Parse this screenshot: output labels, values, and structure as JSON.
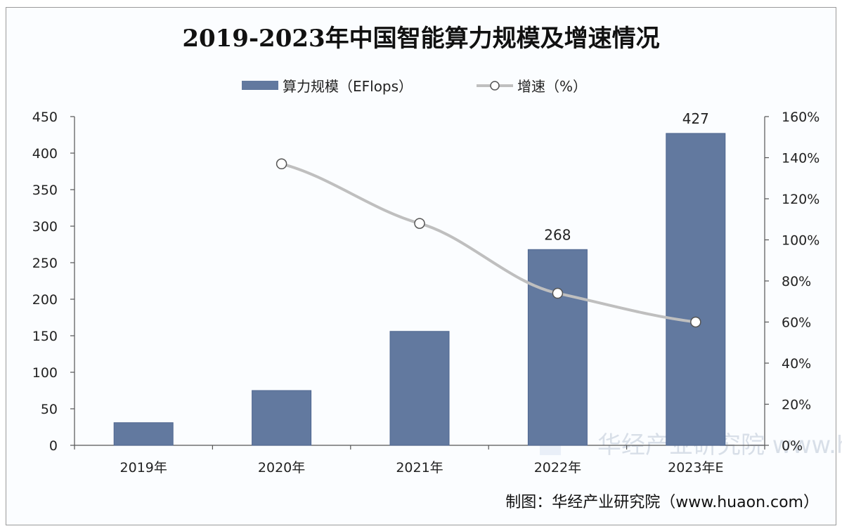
{
  "chart_data": {
    "type": "bar+line",
    "title": "2019-2023年中国智能算力规模及增速情况",
    "categories": [
      "2019年",
      "2020年",
      "2021年",
      "2022年",
      "2023年E"
    ],
    "series": [
      {
        "name": "算力规模（EFlops）",
        "type": "bar",
        "axis": "left",
        "values": [
          31,
          75,
          156,
          268,
          427
        ],
        "data_labels": [
          "",
          "",
          "",
          "268",
          "427"
        ]
      },
      {
        "name": "增速（%）",
        "type": "line",
        "axis": "right",
        "values": [
          null,
          137,
          108,
          74,
          60
        ]
      }
    ],
    "ylim_left": [
      0,
      450
    ],
    "yticks_left": [
      "0",
      "50",
      "100",
      "150",
      "200",
      "250",
      "300",
      "350",
      "400",
      "450"
    ],
    "ylim_right": [
      0,
      160
    ],
    "yticks_right": [
      "0%",
      "20%",
      "40%",
      "60%",
      "80%",
      "100%",
      "120%",
      "140%",
      "160%"
    ],
    "grid": false,
    "legend": "top-center",
    "colors": {
      "bar": "#62799f",
      "line": "#bfbfbf"
    }
  },
  "source": "制图：华经产业研究院（www.huaon.com）",
  "watermark": "华经产业研究院 www.huaon.com"
}
